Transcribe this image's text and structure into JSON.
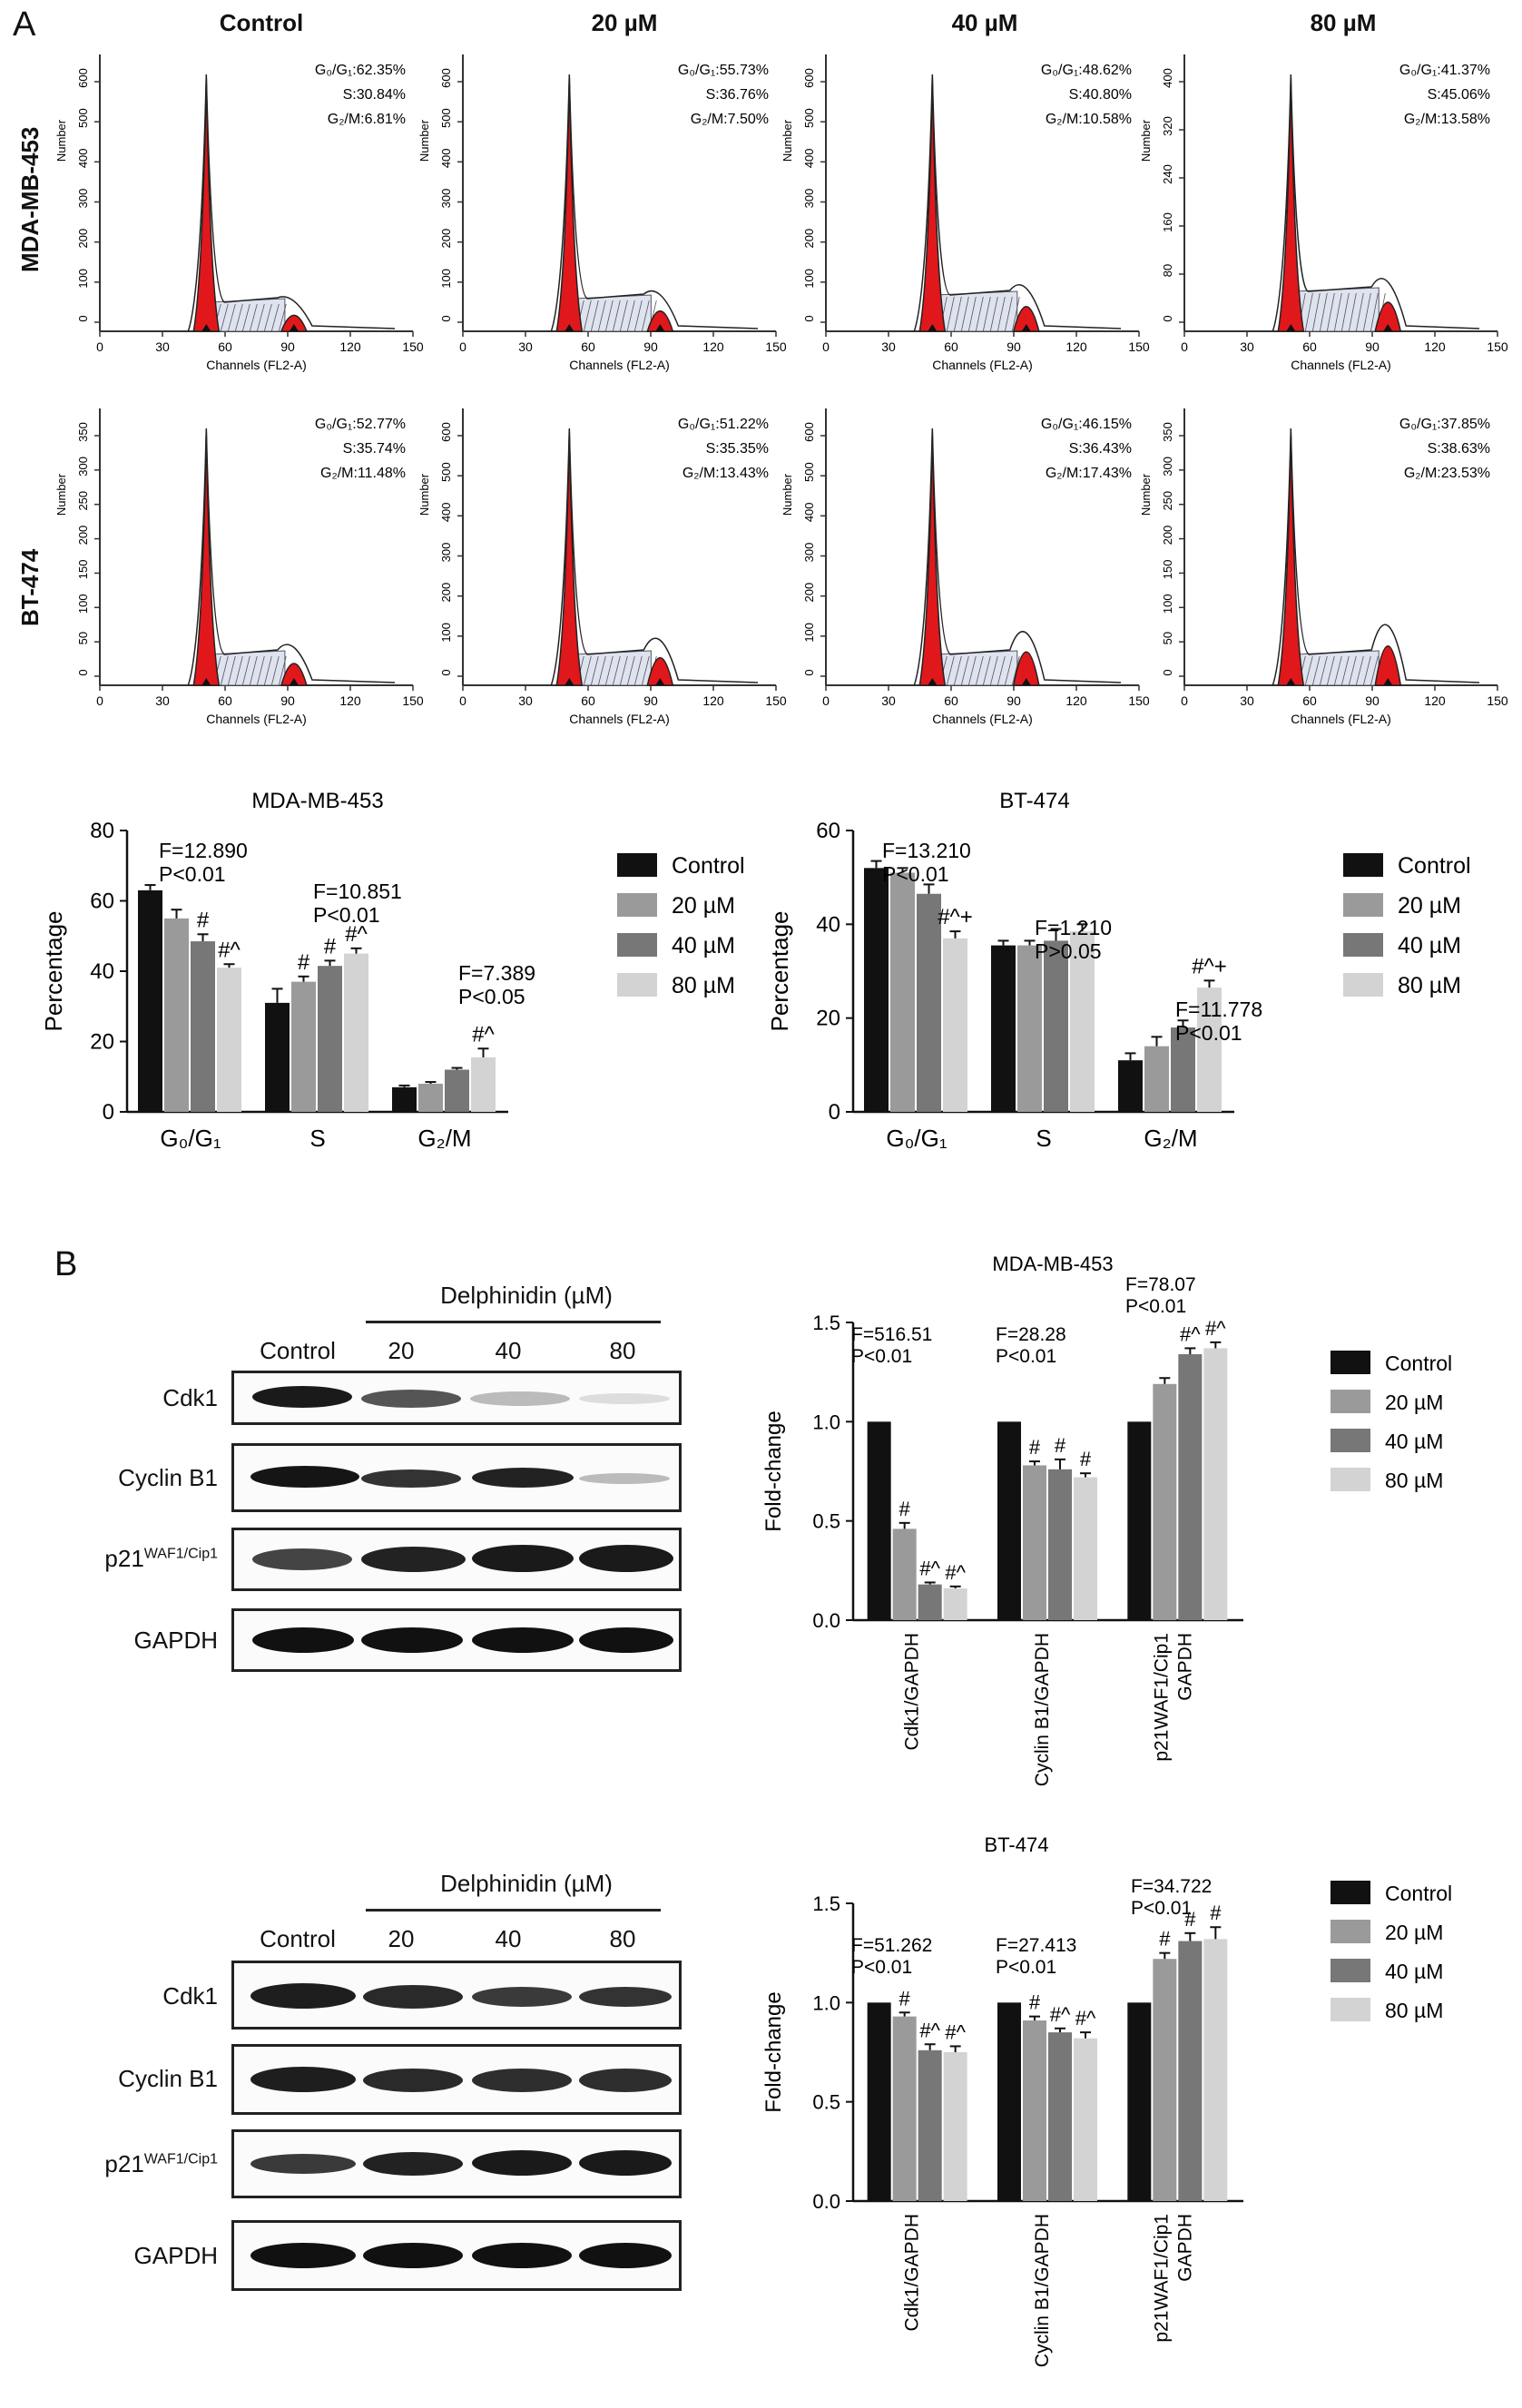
{
  "panels": {
    "a": "A",
    "b": "B"
  },
  "flow": {
    "conditions": [
      "Control",
      "20 µM",
      "40 µM",
      "80 µM"
    ],
    "cell_lines": [
      "MDA-MB-453",
      "BT-474"
    ],
    "y_label": "Number",
    "x_label": "Channels (FL2-A)",
    "x_ticks": [
      "0",
      "30",
      "60",
      "90",
      "120",
      "150"
    ],
    "y_ticks_per_plot": [
      [
        "0",
        "100",
        "200",
        "300",
        "400",
        "500",
        "600"
      ],
      [
        "0",
        "100",
        "200",
        "300",
        "400",
        "500",
        "600"
      ],
      [
        "0",
        "100",
        "200",
        "300",
        "400",
        "500",
        "600"
      ],
      [
        "0",
        "80",
        "160",
        "240",
        "320",
        "400"
      ],
      [
        "0",
        "50",
        "100",
        "150",
        "200",
        "250",
        "300",
        "350"
      ],
      [
        "0",
        "100",
        "200",
        "300",
        "400",
        "500",
        "600"
      ],
      [
        "0",
        "100",
        "200",
        "300",
        "400",
        "500",
        "600"
      ],
      [
        "0",
        "50",
        "100",
        "150",
        "200",
        "250",
        "300",
        "350"
      ]
    ],
    "annotations": [
      [
        "G₀/G₁:62.35%",
        "S:30.84%",
        "G₂/M:6.81%"
      ],
      [
        "G₀/G₁:55.73%",
        "S:36.76%",
        "G₂/M:7.50%"
      ],
      [
        "G₀/G₁:48.62%",
        "S:40.80%",
        "G₂/M:10.58%"
      ],
      [
        "G₀/G₁:41.37%",
        "S:45.06%",
        "G₂/M:13.58%"
      ],
      [
        "G₀/G₁:52.77%",
        "S:35.74%",
        "G₂/M:11.48%"
      ],
      [
        "G₀/G₁:51.22%",
        "S:35.35%",
        "G₂/M:13.43%"
      ],
      [
        "G₀/G₁:46.15%",
        "S:36.43%",
        "G₂/M:17.43%"
      ],
      [
        "G₀/G₁:37.85%",
        "S:38.63%",
        "G₂/M:23.53%"
      ]
    ]
  },
  "legend_labels": [
    "Control",
    "20 µM",
    "40 µM",
    "80 µM"
  ],
  "colors": {
    "control": "#111111",
    "c20": "#9a9a9a",
    "c40": "#777777",
    "c80": "#d3d3d3",
    "peak": "#e0181b"
  },
  "western": {
    "header": "Delphinidin (µM)",
    "lanes": [
      "Control",
      "20",
      "40",
      "80"
    ],
    "proteins": [
      "Cdk1",
      "Cyclin B1",
      "p21",
      "GAPDH"
    ],
    "p21_superscript": "WAF1/Cip1"
  },
  "chart_data": [
    {
      "type": "bar",
      "title": "MDA-MB-453",
      "ylabel": "Percentage",
      "ylim": [
        0,
        80
      ],
      "yticks": [
        "0",
        "20",
        "40",
        "60",
        "80"
      ],
      "categories": [
        "G₀/G₁",
        "S",
        "G₂/M"
      ],
      "series": [
        {
          "name": "Control",
          "values": [
            63.0,
            31.0,
            7.0
          ],
          "errors": [
            1.5,
            4.0,
            0.5
          ]
        },
        {
          "name": "20 µM",
          "values": [
            55.0,
            37.0,
            8.0
          ],
          "errors": [
            2.5,
            1.5,
            0.5
          ]
        },
        {
          "name": "40 µM",
          "values": [
            48.5,
            41.5,
            12.0
          ],
          "errors": [
            2.0,
            1.5,
            0.5
          ]
        },
        {
          "name": "80 µM",
          "values": [
            41.0,
            45.0,
            15.5
          ],
          "errors": [
            1.0,
            1.5,
            2.5
          ]
        }
      ],
      "marks": [
        [
          "",
          "",
          "#",
          "#^"
        ],
        [
          "",
          "#",
          "#",
          "#^"
        ],
        [
          "",
          "",
          "",
          "#^"
        ]
      ],
      "stats": [
        [
          "F=12.890",
          "P<0.01"
        ],
        [
          "F=10.851",
          "P<0.01"
        ],
        [
          "F=7.389",
          "P<0.05"
        ]
      ]
    },
    {
      "type": "bar",
      "title": "BT-474",
      "ylabel": "Percentage",
      "ylim": [
        0,
        60
      ],
      "yticks": [
        "0",
        "20",
        "40",
        "60"
      ],
      "categories": [
        "G₀/G₁",
        "S",
        "G₂/M"
      ],
      "series": [
        {
          "name": "Control",
          "values": [
            52.0,
            35.5,
            11.0
          ],
          "errors": [
            1.5,
            1.0,
            1.5
          ]
        },
        {
          "name": "20 µM",
          "values": [
            51.0,
            35.5,
            14.0
          ],
          "errors": [
            1.0,
            1.0,
            2.0
          ]
        },
        {
          "name": "40 µM",
          "values": [
            46.5,
            36.5,
            18.0
          ],
          "errors": [
            2.0,
            2.5,
            1.5
          ]
        },
        {
          "name": "80 µM",
          "values": [
            37.0,
            38.5,
            26.5
          ],
          "errors": [
            1.5,
            1.5,
            1.5
          ]
        }
      ],
      "marks": [
        [
          "",
          "",
          "",
          "#^+"
        ],
        [
          "",
          "",
          "",
          ""
        ],
        [
          "",
          "",
          "",
          "#^+"
        ]
      ],
      "stats": [
        [
          "F=13.210",
          "P<0.01"
        ],
        [
          "F=1.210",
          "P>0.05"
        ],
        [
          "F=11.778",
          "P<0.01"
        ]
      ]
    },
    {
      "type": "bar",
      "title": "MDA-MB-453",
      "ylabel": "Fold-change",
      "ylim": [
        0,
        1.5
      ],
      "yticks": [
        "0.0",
        "0.5",
        "1.0",
        "1.5"
      ],
      "categories": [
        "Cdk1/GAPDH",
        "Cyclin B1/GAPDH",
        "p21WAF1/Cip1/ GAPDH"
      ],
      "series": [
        {
          "name": "Control",
          "values": [
            1.0,
            1.0,
            1.0
          ],
          "errors": [
            0,
            0,
            0
          ]
        },
        {
          "name": "20 µM",
          "values": [
            0.46,
            0.78,
            1.19
          ],
          "errors": [
            0.03,
            0.02,
            0.03
          ]
        },
        {
          "name": "40 µM",
          "values": [
            0.18,
            0.76,
            1.34
          ],
          "errors": [
            0.01,
            0.05,
            0.03
          ]
        },
        {
          "name": "80 µM",
          "values": [
            0.16,
            0.72,
            1.37
          ],
          "errors": [
            0.01,
            0.02,
            0.03
          ]
        }
      ],
      "marks": [
        [
          "",
          "#",
          "#^",
          "#^"
        ],
        [
          "",
          "#",
          "#",
          "#"
        ],
        [
          "",
          "",
          "#^",
          "#^"
        ]
      ],
      "stats": [
        [
          "F=516.51",
          "P<0.01"
        ],
        [
          "F=28.28",
          "P<0.01"
        ],
        [
          "F=78.07",
          "P<0.01"
        ]
      ]
    },
    {
      "type": "bar",
      "title": "BT-474",
      "ylabel": "Fold-change",
      "ylim": [
        0,
        1.5
      ],
      "yticks": [
        "0.0",
        "0.5",
        "1.0",
        "1.5"
      ],
      "categories": [
        "Cdk1/GAPDH",
        "Cyclin B1/GAPDH",
        "p21WAF1/Cip1/ GAPDH"
      ],
      "series": [
        {
          "name": "Control",
          "values": [
            1.0,
            1.0,
            1.0
          ],
          "errors": [
            0,
            0,
            0
          ]
        },
        {
          "name": "20 µM",
          "values": [
            0.93,
            0.91,
            1.22
          ],
          "errors": [
            0.02,
            0.02,
            0.03
          ]
        },
        {
          "name": "40 µM",
          "values": [
            0.76,
            0.85,
            1.31
          ],
          "errors": [
            0.03,
            0.02,
            0.04
          ]
        },
        {
          "name": "80 µM",
          "values": [
            0.75,
            0.82,
            1.32
          ],
          "errors": [
            0.03,
            0.03,
            0.06
          ]
        }
      ],
      "marks": [
        [
          "",
          "#",
          "#^",
          "#^"
        ],
        [
          "",
          "#",
          "#^",
          "#^"
        ],
        [
          "",
          "#",
          "#",
          "#"
        ]
      ],
      "stats": [
        [
          "F=51.262",
          "P<0.01"
        ],
        [
          "F=27.413",
          "P<0.01"
        ],
        [
          "F=34.722",
          "P<0.01"
        ]
      ]
    }
  ]
}
